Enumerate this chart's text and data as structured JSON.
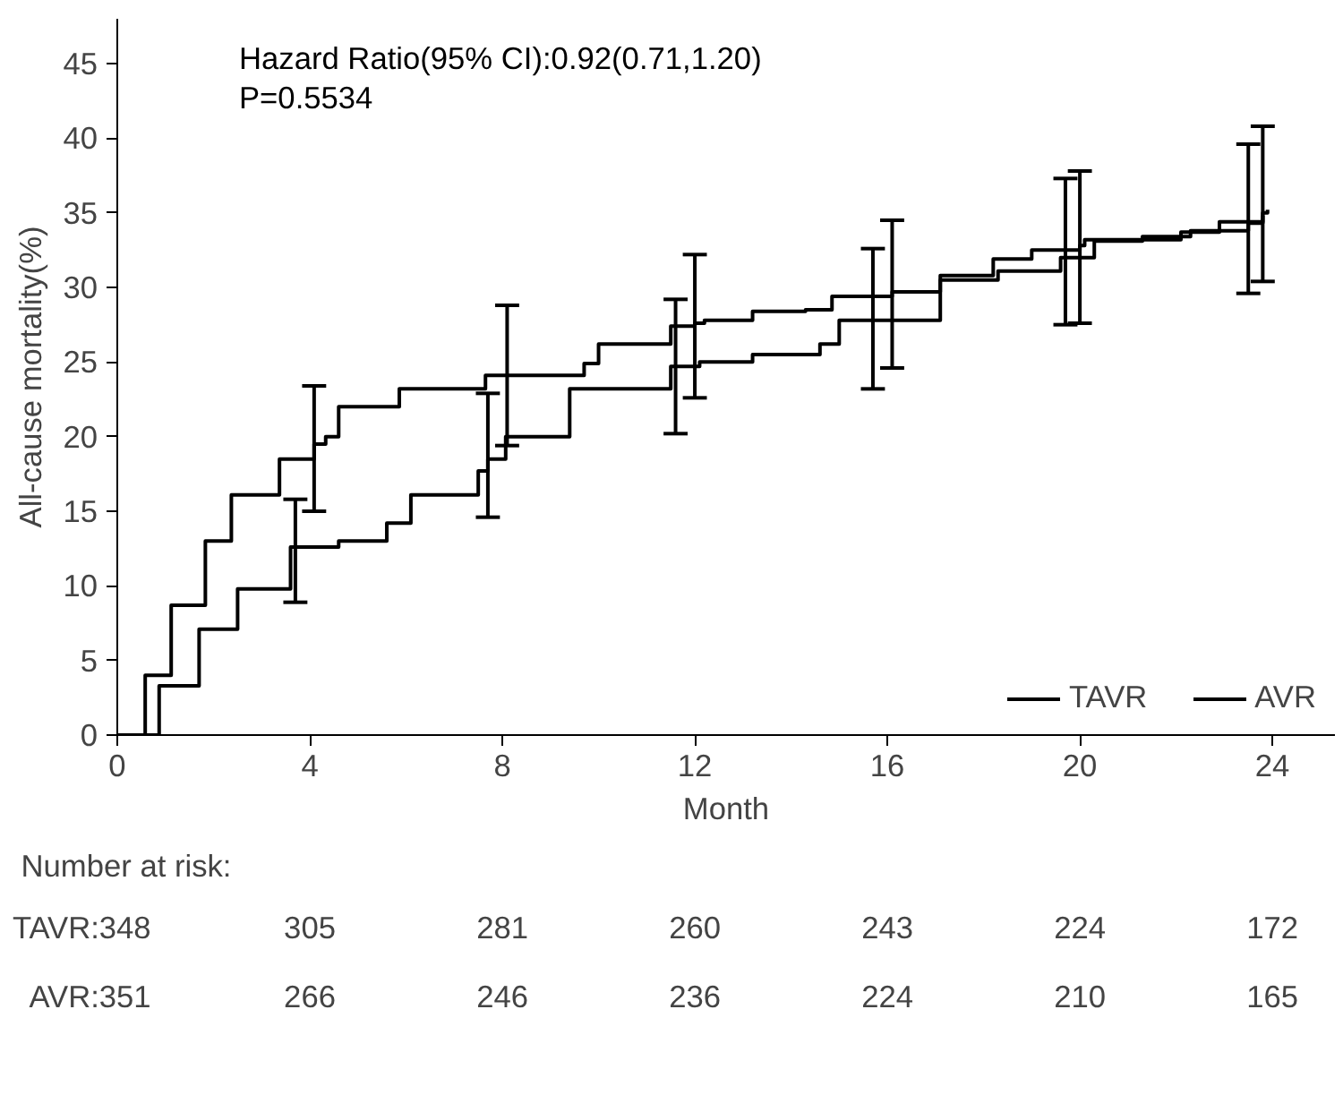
{
  "chart_data": {
    "type": "step",
    "xlabel": "Month",
    "ylabel": "All-cause mortality(%)",
    "annotations": [
      "Hazard Ratio(95% CI):0.92(0.71,1.20)",
      "P=0.5534",
      "Number at risk:",
      "TAVR:348",
      "305",
      "281",
      "260",
      "243",
      "224",
      "172",
      "AVR:351",
      "266",
      "246",
      "236",
      "224",
      "210",
      "165"
    ],
    "xlim": [
      0,
      25.3
    ],
    "ylim": [
      0,
      48
    ],
    "xticks": [
      0,
      4,
      8,
      12,
      16,
      20,
      24
    ],
    "yticks": [
      0,
      5,
      10,
      15,
      20,
      25,
      30,
      35,
      40,
      45
    ],
    "grid": false,
    "legend": "bottom right",
    "line_style": "solid",
    "series": [
      {
        "name": "TAVR",
        "color": "#000000",
        "x": [
          0,
          0.87,
          1.7,
          2.5,
          3.6,
          3.7,
          4.6,
          5.6,
          6.1,
          7.5,
          7.7,
          8.07,
          9.4,
          11.5,
          11.6,
          12.1,
          13.2,
          14.6,
          15.0,
          15.7,
          16.0,
          17.1,
          18.3,
          19.6,
          19.7,
          20.3,
          21.3,
          22.3,
          23.5,
          23.8
        ],
        "values": [
          0,
          3.3,
          7.1,
          9.8,
          12.6,
          12.6,
          13,
          14.2,
          16.1,
          17.7,
          18.5,
          20,
          23.2,
          24.7,
          24.7,
          25,
          25.5,
          26.2,
          27.8,
          27.8,
          27.8,
          30.5,
          31.1,
          32.0,
          32.0,
          33.1,
          33.4,
          33.8,
          34.3,
          34.8
        ],
        "errors": [
          null,
          null,
          null,
          null,
          null,
          [
            8.9,
            15.8
          ],
          null,
          null,
          null,
          null,
          [
            14.6,
            22.9
          ],
          null,
          null,
          null,
          [
            20.2,
            29.2
          ],
          null,
          null,
          null,
          null,
          [
            23.2,
            32.6
          ],
          null,
          null,
          null,
          null,
          [
            27.5,
            37.3
          ],
          null,
          null,
          null,
          [
            29.6,
            39.6
          ],
          null
        ]
      },
      {
        "name": "AVR",
        "color": "#000000",
        "x": [
          0,
          0.58,
          1.12,
          1.83,
          2.37,
          3.37,
          4.09,
          4.33,
          4.6,
          5.86,
          7.65,
          8.1,
          9.7,
          10.0,
          11.5,
          12.0,
          12.2,
          13.2,
          14.3,
          14.85,
          16.1,
          16.3,
          17.1,
          18.2,
          19.0,
          20.0,
          20.1,
          22.1,
          22.9,
          23.8,
          23.9
        ],
        "values": [
          0,
          4.0,
          8.7,
          13,
          16.1,
          18.5,
          19.5,
          20,
          22,
          23.2,
          24.1,
          24.1,
          24.9,
          26.2,
          27.4,
          27.6,
          27.8,
          28.4,
          28.5,
          29.4,
          29.7,
          29.7,
          30.8,
          31.9,
          32.5,
          32.8,
          33.2,
          33.7,
          34.4,
          35.0,
          35.2
        ],
        "errors": [
          null,
          null,
          null,
          null,
          null,
          null,
          [
            15.0,
            23.4
          ],
          null,
          null,
          null,
          null,
          [
            19.4,
            28.8
          ],
          null,
          null,
          null,
          [
            22.6,
            32.2
          ],
          null,
          null,
          null,
          null,
          [
            24.6,
            34.5
          ],
          null,
          null,
          null,
          null,
          [
            27.6,
            37.8
          ],
          null,
          null,
          null,
          [
            30.4,
            40.8
          ],
          null
        ]
      }
    ]
  }
}
